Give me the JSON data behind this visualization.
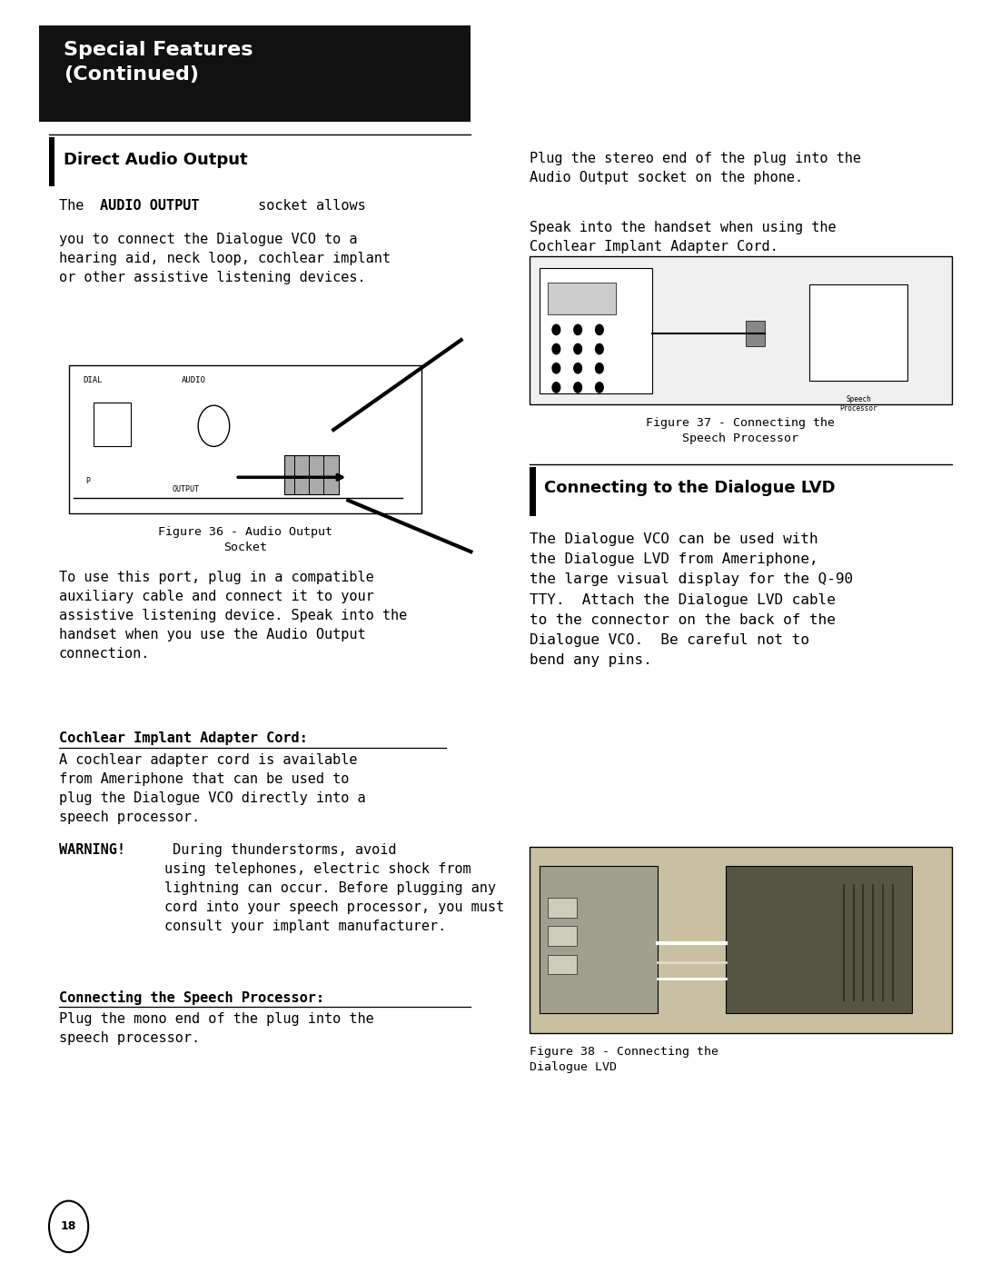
{
  "bg_color": "#ffffff",
  "header_bg": "#111111",
  "header_text": "Special Features\n(Continued)",
  "header_text_color": "#ffffff",
  "header_font_size": 16,
  "sections": {
    "direct_audio_title": "Direct Audio Output",
    "fig36_caption": "Figure 36 - Audio Output\nSocket",
    "body2": "To use this port, plug in a compatible\nauxiliary cable and connect it to your\nassistive listening device. Speak into the\nhandset when you use the Audio Output\nconnection.",
    "cochlear_title": "Cochlear Implant Adapter Cord:",
    "cochlear_body": "A cochlear adapter cord is available\nfrom Ameriphone that can be used to\nplug the Dialogue VCO directly into a\nspeech processor.",
    "warning_bold": "WARNING!",
    "warning_body": " During thunderstorms, avoid\nusing telephones, electric shock from\nlightning can occur. Before plugging any\ncord into your speech processor, you must\nconsult your implant manufacturer.",
    "speech_proc_title": "Connecting the Speech Processor:",
    "speech_proc_body": "Plug the mono end of the plug into the\nspeech processor.",
    "right_body1": "Plug the stereo end of the plug into the\nAudio Output socket on the phone.",
    "right_body2": "Speak into the handset when using the\nCochlear Implant Adapter Cord.",
    "fig37_caption": "Figure 37 - Connecting the\nSpeech Processor",
    "connecting_lvd_title": "Connecting to the Dialogue LVD",
    "connecting_lvd_body": "The Dialogue VCO can be used with\nthe Dialogue LVD from Ameriphone,\nthe large visual display for the Q-90\nTTY.  Attach the Dialogue LVD cable\nto the connector on the back of the\nDialogue VCO.  Be careful not to\nbend any pins.",
    "fig38_caption": "Figure 38 - Connecting the\nDialogue LVD",
    "page_number": "18"
  }
}
